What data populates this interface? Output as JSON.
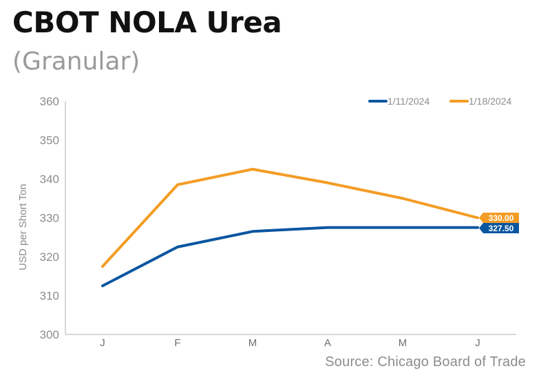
{
  "title": "CBOT NOLA Urea",
  "subtitle": "(Granular)",
  "source": "Source: Chicago Board of Trade",
  "colors": {
    "series1": "#0a56a0",
    "series2": "#f39c24",
    "axis": "#cccccc",
    "text": "#8c8c8c"
  },
  "chart_data": {
    "type": "line",
    "categories": [
      "J",
      "F",
      "M",
      "A",
      "M",
      "J"
    ],
    "ylabel": "USD per Short Ton",
    "ylim": [
      300,
      360
    ],
    "yticks": [
      300,
      310,
      320,
      330,
      340,
      350,
      360
    ],
    "grid": false,
    "legend_position": "top-right",
    "series": [
      {
        "name": "1/11/2024",
        "color": "#0a56a0",
        "values": [
          312.5,
          322.5,
          326.5,
          327.5,
          327.5,
          327.5
        ],
        "end_label": "327.50"
      },
      {
        "name": "1/18/2024",
        "color": "#f39c24",
        "values": [
          317.5,
          338.5,
          342.5,
          339,
          335,
          330
        ],
        "end_label": "330.00"
      }
    ]
  }
}
